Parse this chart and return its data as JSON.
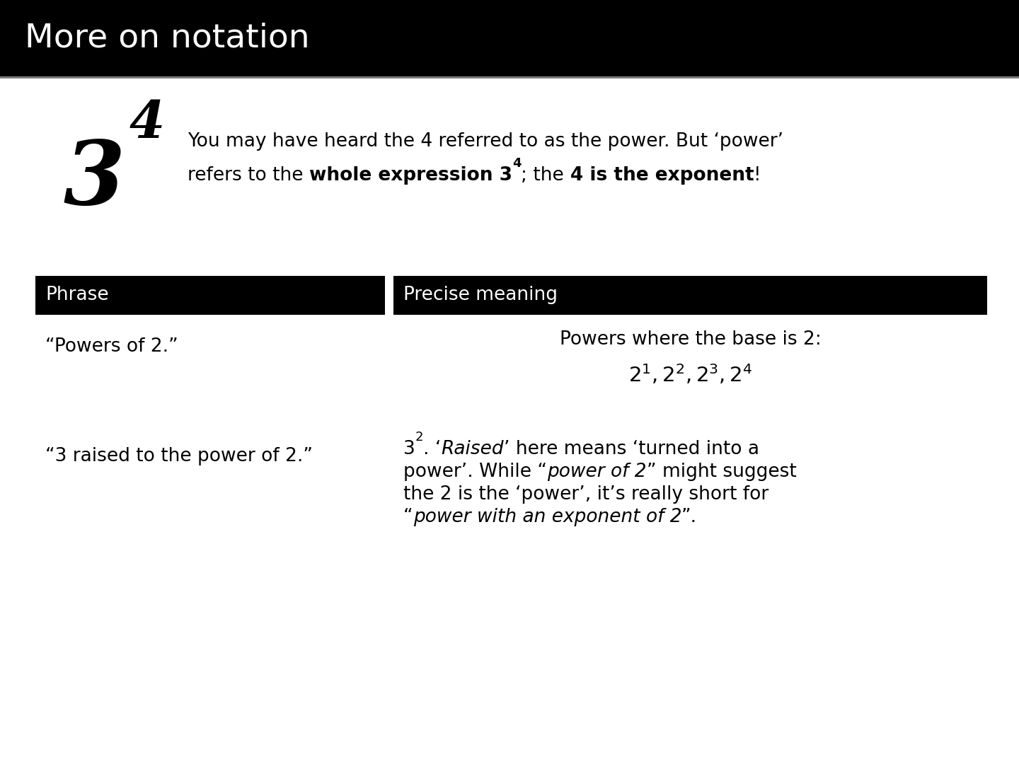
{
  "title": "More on notation",
  "title_bg": "#000000",
  "title_color": "#ffffff",
  "title_fontsize": 34,
  "bg_color": "#ffffff",
  "header_bg": "#000000",
  "header_color": "#ffffff",
  "header_fontsize": 19,
  "body_fontsize": 19,
  "col1_header": "Phrase",
  "col2_header": "Precise meaning",
  "row1_phrase": "“Powers of 2.”",
  "row1_meaning_line1": "Powers where the base is 2:",
  "row2_phrase": "“3 raised to the power of 2.”",
  "top_note_line1": "You may have heard the 4 referred to as the power. But ‘power’",
  "top_note_line2_plain1": "refers to the ",
  "top_note_line2_bold": "whole expression 3",
  "top_note_line2_plain2": "; the ",
  "top_note_line2_bold2": "4 is the exponent",
  "top_note_line2_plain3": "!"
}
